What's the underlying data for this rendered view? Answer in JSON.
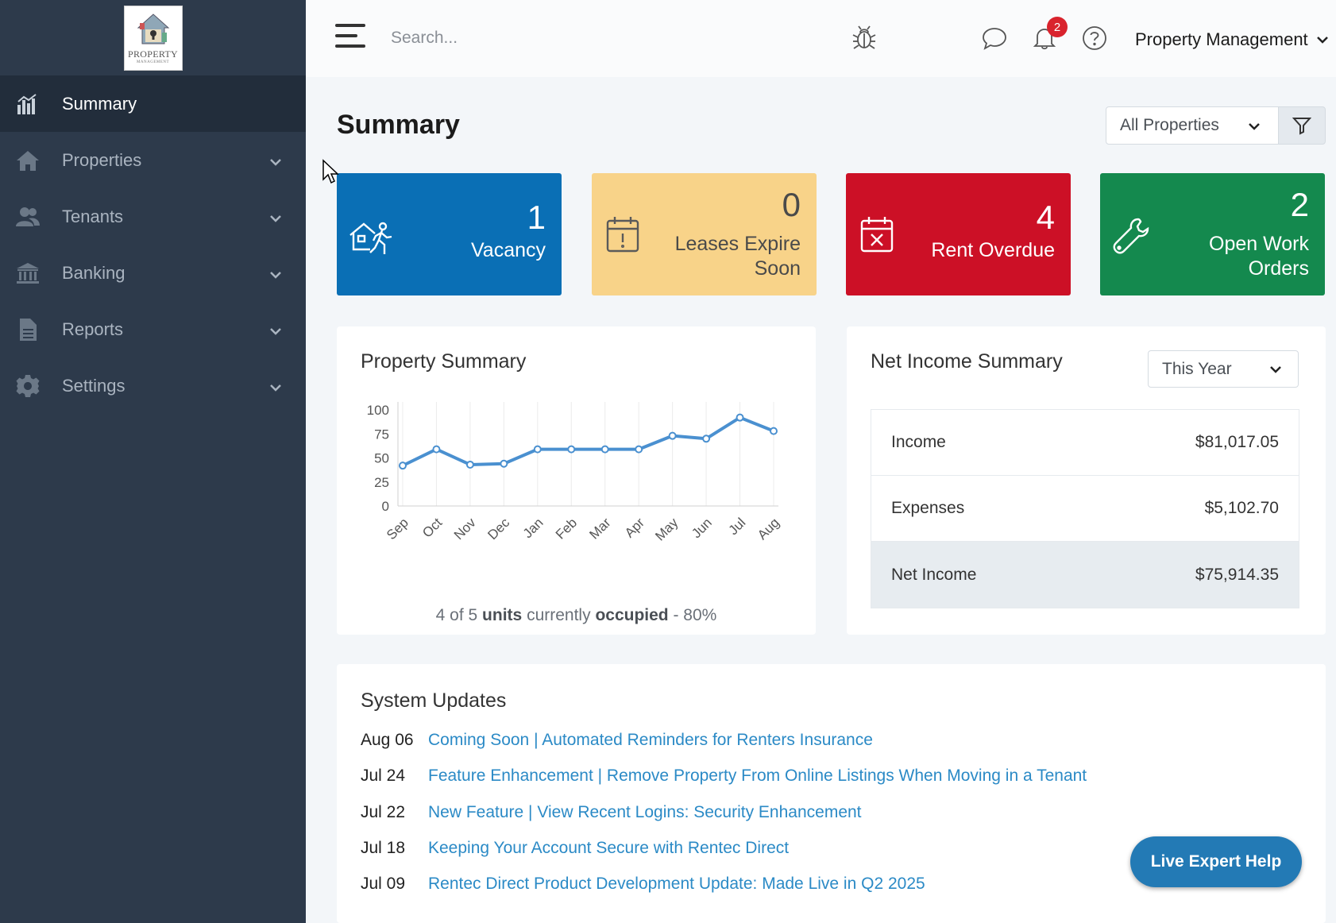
{
  "logo": {
    "text": "PROPERTY",
    "subtext": "MANAGEMENT"
  },
  "sidebar": {
    "items": [
      {
        "label": "Summary",
        "icon": "chart-bar-icon",
        "active": true
      },
      {
        "label": "Properties",
        "icon": "home-icon"
      },
      {
        "label": "Tenants",
        "icon": "users-icon"
      },
      {
        "label": "Banking",
        "icon": "bank-icon"
      },
      {
        "label": "Reports",
        "icon": "file-icon"
      },
      {
        "label": "Settings",
        "icon": "gear-icon"
      }
    ]
  },
  "topbar": {
    "search_placeholder": "Search...",
    "notification_count": "2",
    "account_label": "Property Management"
  },
  "page": {
    "title": "Summary",
    "property_filter": "All Properties"
  },
  "cards": {
    "vacancy": {
      "value": "1",
      "label": "Vacancy",
      "color": "#0a6fb5"
    },
    "leases": {
      "value": "0",
      "label_line1": "Leases Expire",
      "label_line2": "Soon",
      "color": "#f8d389"
    },
    "overdue": {
      "value": "4",
      "label": "Rent Overdue",
      "color": "#cc1026"
    },
    "work_orders": {
      "value": "2",
      "label_line1": "Open Work",
      "label_line2": "Orders",
      "color": "#14894e"
    }
  },
  "property_summary": {
    "title": "Property Summary",
    "occupancy": {
      "count_text": "4 of 5",
      "units_word": "units",
      "middle": "currently",
      "occupied_word": "occupied",
      "percent_text": "- 80%"
    }
  },
  "chart_data": {
    "type": "line",
    "categories": [
      "Sep",
      "Oct",
      "Nov",
      "Dec",
      "Jan",
      "Feb",
      "Mar",
      "Apr",
      "May",
      "Jun",
      "Jul",
      "Aug"
    ],
    "values": [
      42,
      59,
      43,
      44,
      59,
      59,
      59,
      59,
      73,
      70,
      92,
      78
    ],
    "ylim": [
      0,
      100
    ],
    "yticks": [
      0,
      25,
      50,
      75,
      100
    ],
    "grid": true,
    "color": "#4a90d0"
  },
  "net_income": {
    "title": "Net Income Summary",
    "period": "This Year",
    "rows": [
      {
        "label": "Income",
        "value": "$81,017.05"
      },
      {
        "label": "Expenses",
        "value": "$5,102.70"
      },
      {
        "label": "Net Income",
        "value": "$75,914.35"
      }
    ]
  },
  "system_updates": {
    "title": "System Updates",
    "items": [
      {
        "date": "Aug 06",
        "text": "Coming Soon | Automated Reminders for Renters Insurance"
      },
      {
        "date": "Jul 24",
        "text": "Feature Enhancement | Remove Property From Online Listings When Moving in a Tenant"
      },
      {
        "date": "Jul 22",
        "text": "New Feature | View Recent Logins: Security Enhancement"
      },
      {
        "date": "Jul 18",
        "text": "Keeping Your Account Secure with Rentec Direct"
      },
      {
        "date": "Jul 09",
        "text": "Rentec Direct Product Development Update: Made Live in Q2 2025"
      }
    ]
  },
  "live_help": {
    "label": "Live Expert Help"
  }
}
